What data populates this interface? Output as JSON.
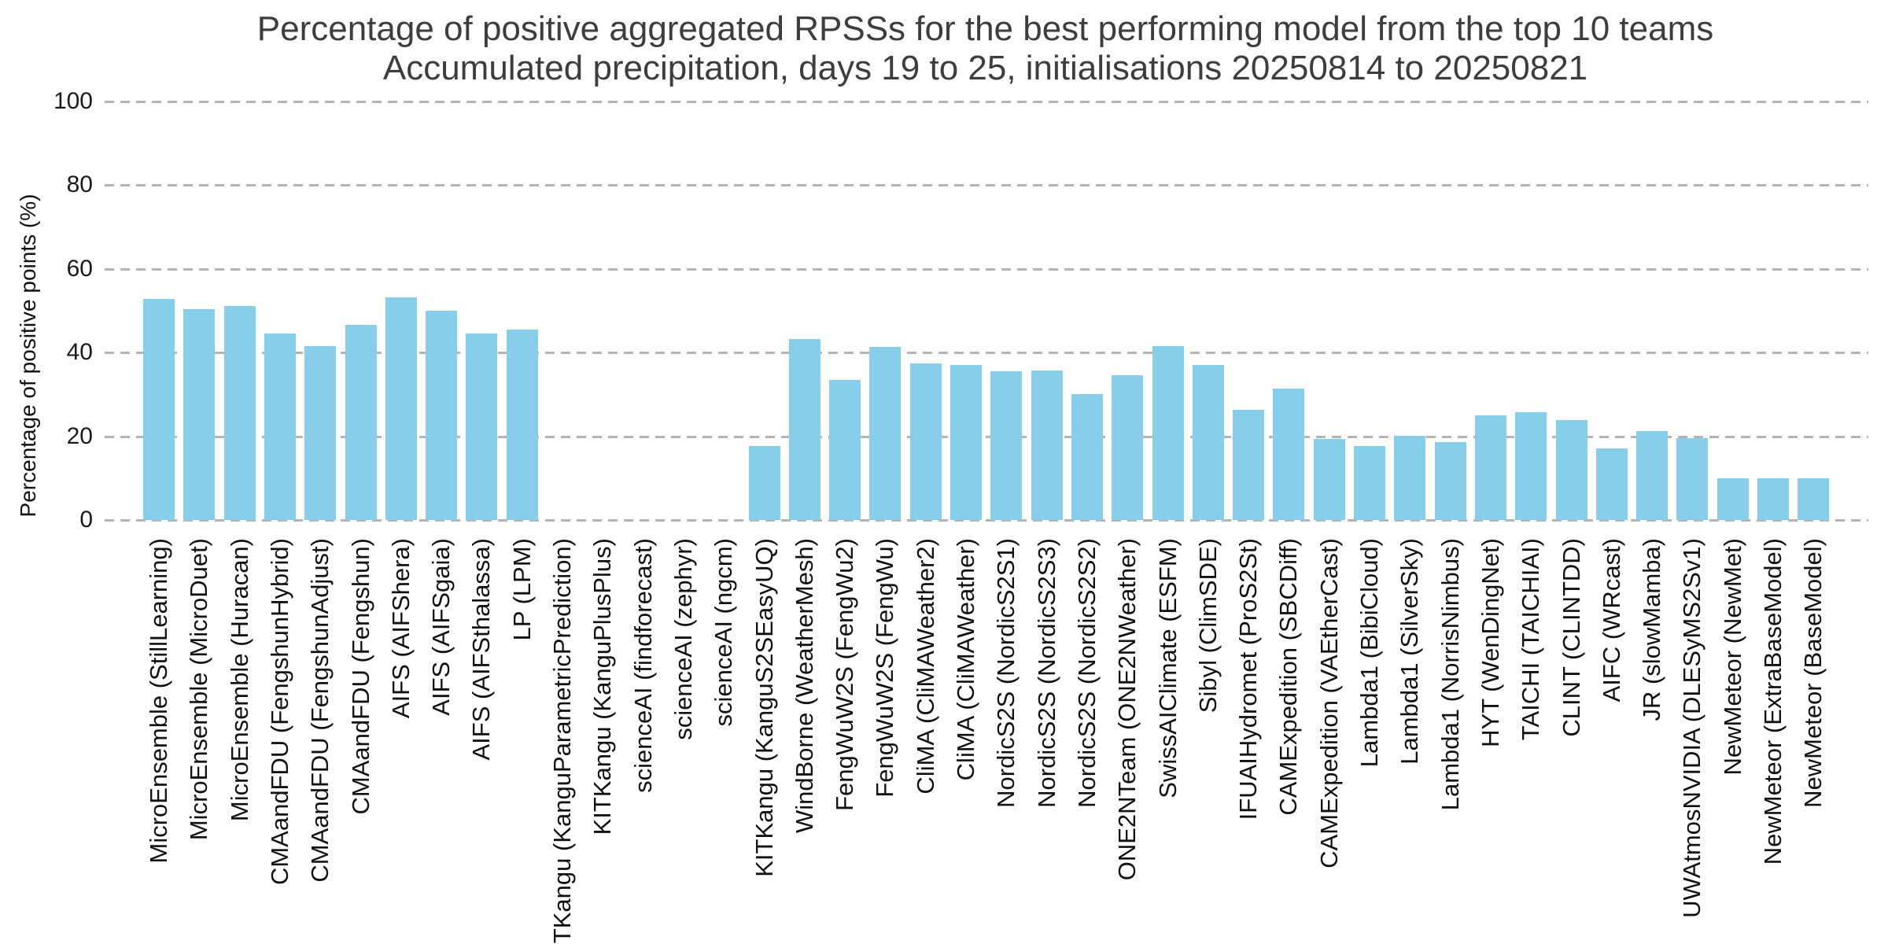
{
  "chart_data": {
    "type": "bar",
    "title": "Percentage of positive aggregated RPSSs for the best performing model from the top 10 teams",
    "subtitle": "Accumulated precipitation, days 19 to 25, initialisations 20250814 to 20250821",
    "ylabel": "Percentage of positive points (%)",
    "xlabel": "",
    "ylim": [
      0,
      100
    ],
    "yticks": [
      0,
      20,
      40,
      60,
      80,
      100
    ],
    "grid": "horizontal-dashed",
    "legend": "none",
    "bar_color": "#87CEEB",
    "gridline_color": "#b4b4b4",
    "title_color": "#3d3d3d",
    "categories": [
      "MicroEnsemble (StillLearning)",
      "MicroEnsemble (MicroDuet)",
      "MicroEnsemble (Huracan)",
      "CMAandFDU (FengshunHybrid)",
      "CMAandFDU (FengshunAdjust)",
      "CMAandFDU (Fengshun)",
      "AIFS (AIFShera)",
      "AIFS (AIFSgaia)",
      "AIFS (AIFSthalassa)",
      "LP (LPM)",
      "KITKangu (KanguParametricPrediction)",
      "KITKangu (KanguPlusPlus)",
      "scienceAI (findforecast)",
      "scienceAI (zephyr)",
      "scienceAI (ngcm)",
      "KITKangu (KanguS2SEasyUQ)",
      "WindBorne (WeatherMesh)",
      "FengWuW2S (FengWu2)",
      "FengWuW2S (FengWu)",
      "CliMA (CliMAWeather2)",
      "CliMA (CliMAWeather)",
      "NordicS2S (NordicS2S1)",
      "NordicS2S (NordicS2S3)",
      "NordicS2S (NordicS2S2)",
      "ONE2NTeam (ONE2NWeather)",
      "SwissAIClimate (ESFM)",
      "Sibyl (ClimSDE)",
      "IFUAIHydromet (ProS2St)",
      "CAMExpedition (SBCDiff)",
      "CAMExpedition (VAEtherCast)",
      "Lambda1 (BibiCloud)",
      "Lambda1 (SilverSky)",
      "Lambda1 (NorrisNimbus)",
      "HYT (WenDingNet)",
      "TAICHI (TAICHIAI)",
      "CLINT (CLINTDD)",
      "AIFC (WRcast)",
      "JR (slowMamba)",
      "UWAtmosNVIDIA (DLESyMS2Sv1)",
      "NewMeteor (NewMet)",
      "NewMeteor (ExtraBaseModel)",
      "NewMeteor (BaseModel)"
    ],
    "values": [
      52.8,
      50.4,
      51.2,
      44.6,
      41.5,
      46.6,
      53.2,
      50.0,
      44.6,
      45.4,
      0,
      0,
      0,
      0,
      0,
      17.6,
      43.3,
      33.4,
      41.3,
      37.4,
      37.1,
      35.5,
      35.7,
      30.0,
      34.6,
      41.5,
      37.1,
      26.4,
      31.4,
      19.4,
      17.7,
      20.1,
      18.6,
      25.0,
      25.7,
      23.8,
      17.1,
      21.2,
      19.5,
      9.9,
      9.9,
      9.9
    ]
  }
}
